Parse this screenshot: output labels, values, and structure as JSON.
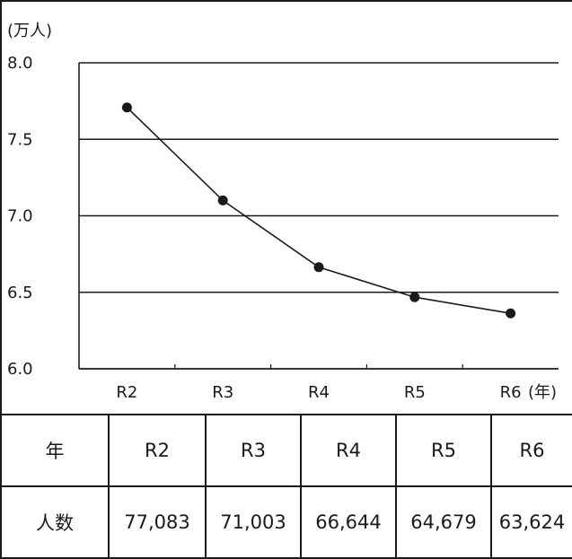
{
  "chart_data": {
    "type": "line",
    "y_unit_label": "(万人)",
    "x_unit_label": "(年)",
    "categories": [
      "R2",
      "R3",
      "R4",
      "R5",
      "R6"
    ],
    "series": [
      {
        "values": [
          7.7083,
          7.1003,
          6.6644,
          6.4679,
          6.3624
        ]
      }
    ],
    "ylim": [
      6.0,
      8.0
    ],
    "yticks": [
      "6.0",
      "6.5",
      "7.0",
      "7.5",
      "8.0"
    ],
    "grid": "horizontal",
    "colors": {
      "line": "#1a1a1a",
      "marker": "#1a1a1a",
      "grid": "#1a1a1a"
    }
  },
  "table": {
    "row_headers": [
      "年",
      "人数"
    ],
    "years": [
      "R2",
      "R3",
      "R4",
      "R5",
      "R6"
    ],
    "counts": [
      "77,083",
      "71,003",
      "66,644",
      "64,679",
      "63,624"
    ]
  }
}
